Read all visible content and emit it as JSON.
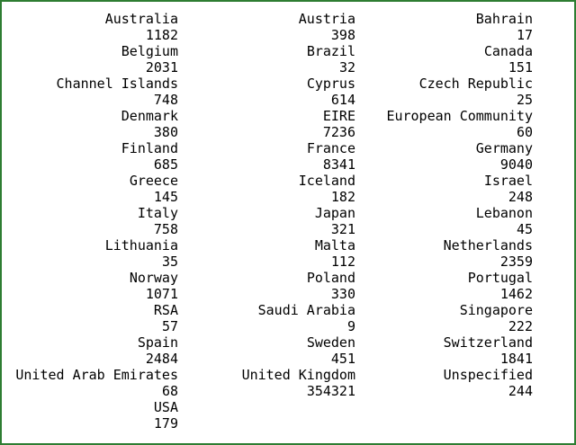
{
  "columns": [
    [
      {
        "name": "Australia",
        "count": "1182"
      },
      {
        "name": "Belgium",
        "count": "2031"
      },
      {
        "name": "Channel Islands",
        "count": "748"
      },
      {
        "name": "Denmark",
        "count": "380"
      },
      {
        "name": "Finland",
        "count": "685"
      },
      {
        "name": "Greece",
        "count": "145"
      },
      {
        "name": "Italy",
        "count": "758"
      },
      {
        "name": "Lithuania",
        "count": "35"
      },
      {
        "name": "Norway",
        "count": "1071"
      },
      {
        "name": "RSA",
        "count": "57"
      },
      {
        "name": "Spain",
        "count": "2484"
      },
      {
        "name": "United Arab Emirates",
        "count": "68"
      },
      {
        "name": "USA",
        "count": "179"
      }
    ],
    [
      {
        "name": "Austria",
        "count": "398"
      },
      {
        "name": "Brazil",
        "count": "32"
      },
      {
        "name": "Cyprus",
        "count": "614"
      },
      {
        "name": "EIRE",
        "count": "7236"
      },
      {
        "name": "France",
        "count": "8341"
      },
      {
        "name": "Iceland",
        "count": "182"
      },
      {
        "name": "Japan",
        "count": "321"
      },
      {
        "name": "Malta",
        "count": "112"
      },
      {
        "name": "Poland",
        "count": "330"
      },
      {
        "name": "Saudi Arabia",
        "count": "9"
      },
      {
        "name": "Sweden",
        "count": "451"
      },
      {
        "name": "United Kingdom",
        "count": "354321"
      }
    ],
    [
      {
        "name": "Bahrain",
        "count": "17"
      },
      {
        "name": "Canada",
        "count": "151"
      },
      {
        "name": "Czech Republic",
        "count": "25"
      },
      {
        "name": "European Community",
        "count": "60"
      },
      {
        "name": "Germany",
        "count": "9040"
      },
      {
        "name": "Israel",
        "count": "248"
      },
      {
        "name": "Lebanon",
        "count": "45"
      },
      {
        "name": "Netherlands",
        "count": "2359"
      },
      {
        "name": "Portugal",
        "count": "1462"
      },
      {
        "name": "Singapore",
        "count": "222"
      },
      {
        "name": "Switzerland",
        "count": "1841"
      },
      {
        "name": "Unspecified",
        "count": "244"
      }
    ]
  ]
}
